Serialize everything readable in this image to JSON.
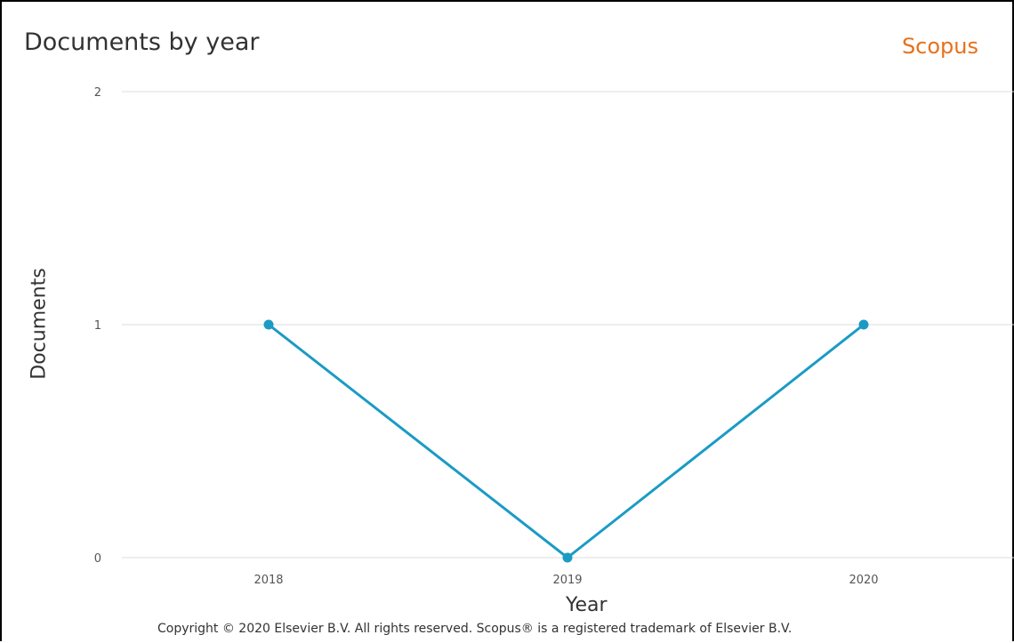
{
  "header": {
    "title": "Documents by year",
    "brand": "Scopus"
  },
  "footer": {
    "copyright": "Copyright © 2020 Elsevier B.V. All rights reserved. Scopus® is a registered trademark of Elsevier B.V."
  },
  "colors": {
    "series": "#1a9bc4",
    "brand": "#e8701a",
    "grid": "#dddddd"
  },
  "chart_data": {
    "type": "line",
    "title": "Documents by year",
    "xlabel": "Year",
    "ylabel": "Documents",
    "categories": [
      "2018",
      "2019",
      "2020"
    ],
    "series": [
      {
        "values": [
          1,
          0,
          1
        ]
      }
    ],
    "ylim": [
      0,
      2
    ],
    "yticks": [
      0,
      1,
      2
    ],
    "grid": true,
    "legend": "none"
  }
}
